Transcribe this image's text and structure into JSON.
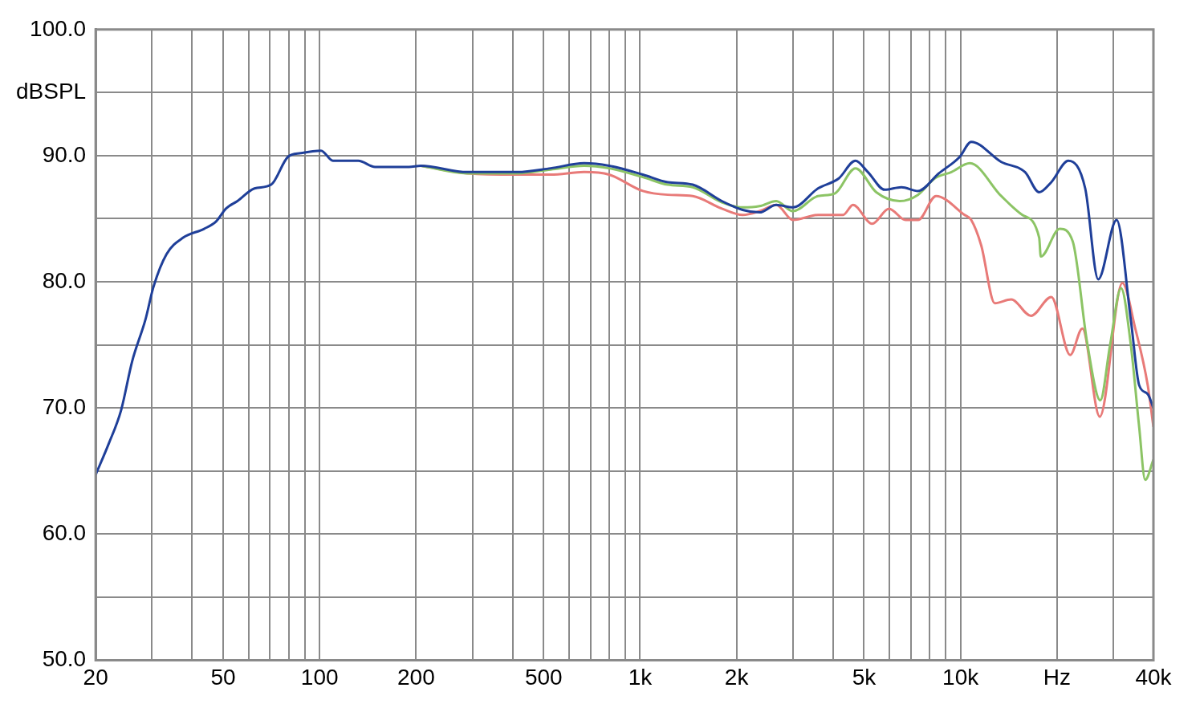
{
  "chart_data": {
    "type": "line",
    "xlim": [
      20,
      40000
    ],
    "ylim": [
      50,
      100
    ],
    "log": "x",
    "grid": true,
    "legend": false,
    "marker": "none",
    "line_style": "solid",
    "xticks": [
      {
        "value": 20,
        "label": "20"
      },
      {
        "value": 30,
        "label": null
      },
      {
        "value": 40,
        "label": null
      },
      {
        "value": 50,
        "label": "50"
      },
      {
        "value": 60,
        "label": null
      },
      {
        "value": 70,
        "label": null
      },
      {
        "value": 80,
        "label": null
      },
      {
        "value": 90,
        "label": null
      },
      {
        "value": 100,
        "label": "100"
      },
      {
        "value": 200,
        "label": "200"
      },
      {
        "value": 300,
        "label": null
      },
      {
        "value": 400,
        "label": null
      },
      {
        "value": 500,
        "label": "500"
      },
      {
        "value": 600,
        "label": null
      },
      {
        "value": 700,
        "label": null
      },
      {
        "value": 800,
        "label": null
      },
      {
        "value": 900,
        "label": null
      },
      {
        "value": 1000,
        "label": "1k"
      },
      {
        "value": 2000,
        "label": "2k"
      },
      {
        "value": 3000,
        "label": null
      },
      {
        "value": 4000,
        "label": null
      },
      {
        "value": 5000,
        "label": "5k"
      },
      {
        "value": 6000,
        "label": null
      },
      {
        "value": 7000,
        "label": null
      },
      {
        "value": 8000,
        "label": null
      },
      {
        "value": 9000,
        "label": null
      },
      {
        "value": 10000,
        "label": "10k"
      },
      {
        "value": 20000,
        "label": "Hz"
      },
      {
        "value": 30000,
        "label": null
      },
      {
        "value": 40000,
        "label": "40k"
      }
    ],
    "yticks": [
      {
        "value": 50,
        "label": "50.0"
      },
      {
        "value": 55,
        "label": null
      },
      {
        "value": 60,
        "label": "60.0"
      },
      {
        "value": 65,
        "label": null
      },
      {
        "value": 70,
        "label": "70.0"
      },
      {
        "value": 75,
        "label": null
      },
      {
        "value": 80,
        "label": "80.0"
      },
      {
        "value": 85,
        "label": null
      },
      {
        "value": 90,
        "label": "90.0"
      },
      {
        "value": 95,
        "label": "dBSPL"
      },
      {
        "value": 100,
        "label": "100.0"
      }
    ],
    "series": [
      {
        "color": "#1f3f99",
        "x": [
          20,
          22,
          24,
          26,
          28.6,
          30.3,
          33.3,
          37.5,
          43.6,
          47.6,
          51,
          55.4,
          62.6,
          70.6,
          79.6,
          87.3,
          101,
          110,
          132,
          149,
          190,
          207,
          289,
          414,
          526,
          669,
          800,
          1020,
          1220,
          1460,
          1800,
          2090,
          2360,
          2660,
          3000,
          3590,
          4170,
          4700,
          5140,
          5800,
          6540,
          7370,
          8560,
          9940,
          10800,
          13400,
          15900,
          17600,
          19200,
          21700,
          24500,
          26900,
          30700,
          34000,
          36100,
          38400,
          40000
        ],
        "values": [
          64.7,
          67.2,
          69.8,
          73.7,
          77.0,
          79.6,
          82.2,
          83.5,
          84.2,
          84.8,
          85.8,
          86.4,
          87.4,
          87.7,
          89.9,
          90.2,
          90.4,
          89.6,
          89.6,
          89.1,
          89.1,
          89.2,
          88.7,
          88.7,
          89.0,
          89.4,
          89.2,
          88.5,
          87.9,
          87.7,
          86.4,
          85.7,
          85.5,
          86.1,
          85.9,
          87.4,
          88.2,
          89.6,
          88.7,
          87.3,
          87.5,
          87.2,
          88.6,
          89.9,
          91.1,
          89.5,
          88.7,
          87.1,
          87.9,
          89.6,
          87.4,
          80.2,
          84.9,
          77.0,
          71.8,
          71.1,
          70.0
        ]
      },
      {
        "color": "#8cc465",
        "x": [
          207,
          289,
          414,
          526,
          669,
          800,
          1020,
          1220,
          1460,
          1800,
          2090,
          2360,
          2660,
          3000,
          3590,
          4050,
          4700,
          5460,
          6460,
          7370,
          8310,
          9370,
          10700,
          13400,
          15600,
          17600,
          17800,
          20400,
          22400,
          24900,
          27300,
          29300,
          31700,
          34000,
          36100,
          37700,
          40000
        ],
        "values": [
          89.2,
          88.6,
          88.6,
          88.9,
          89.2,
          89.0,
          88.3,
          87.7,
          87.5,
          86.3,
          85.9,
          86.0,
          86.4,
          85.6,
          86.8,
          87.0,
          89.0,
          87.1,
          86.4,
          86.9,
          88.2,
          88.7,
          89.4,
          86.8,
          85.3,
          83.5,
          82.0,
          84.2,
          83.2,
          75.0,
          70.6,
          75.0,
          79.5,
          75.0,
          68.5,
          64.3,
          65.9
        ]
      },
      {
        "color": "#e87a78",
        "x": [
          207,
          289,
          414,
          526,
          669,
          800,
          1020,
          1220,
          1460,
          1800,
          2090,
          2360,
          2660,
          3000,
          3590,
          4300,
          4620,
          5300,
          5980,
          6740,
          7370,
          8390,
          10300,
          10800,
          11600,
          12800,
          14400,
          16600,
          19200,
          22000,
          24000,
          27200,
          32000,
          35100,
          38400,
          40000
        ],
        "values": [
          89.2,
          88.6,
          88.5,
          88.5,
          88.7,
          88.5,
          87.2,
          86.9,
          86.8,
          85.8,
          85.3,
          85.6,
          86.1,
          84.9,
          85.3,
          85.3,
          86.1,
          84.6,
          85.8,
          84.9,
          84.9,
          86.8,
          85.3,
          84.9,
          82.9,
          78.3,
          78.6,
          77.3,
          78.8,
          74.2,
          76.3,
          69.3,
          79.9,
          76.3,
          71.8,
          68.5
        ]
      }
    ]
  }
}
